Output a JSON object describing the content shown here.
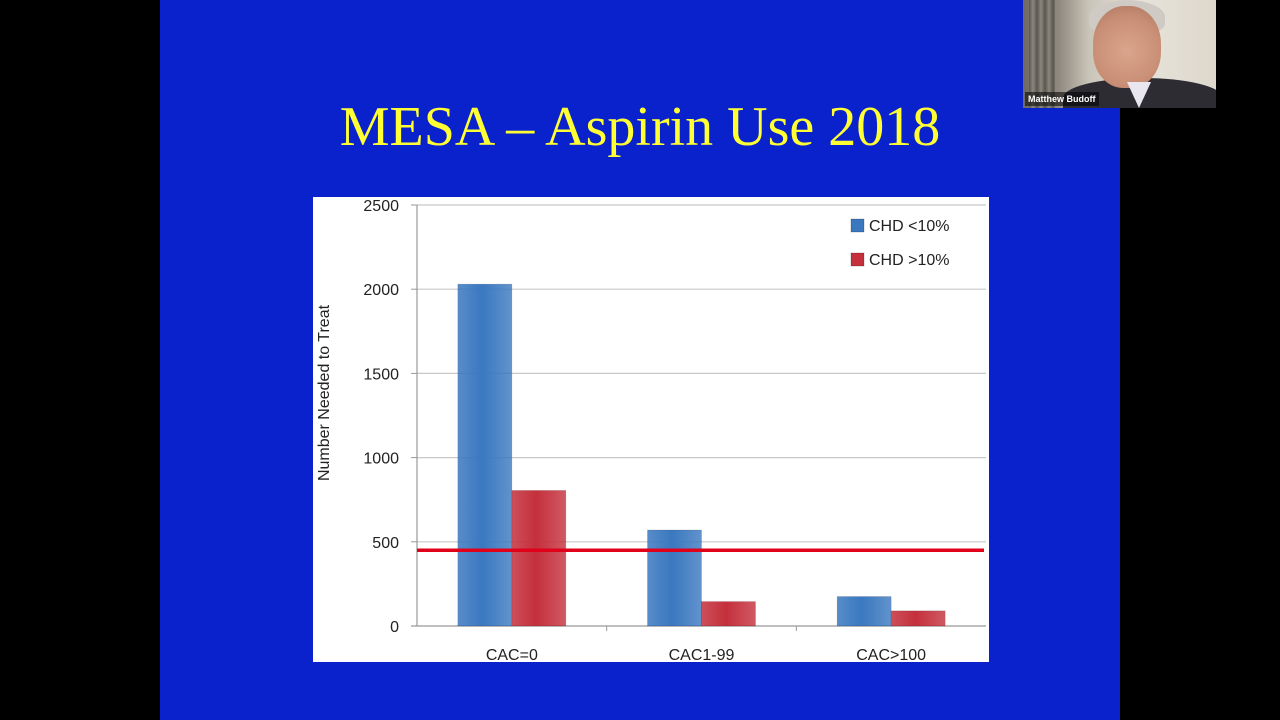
{
  "slide": {
    "title": "MESA – Aspirin Use 2018"
  },
  "video": {
    "speaker_name": "Matthew Budoff"
  },
  "chart_data": {
    "type": "bar",
    "title": "",
    "xlabel": "",
    "ylabel": "Number Needed to Treat",
    "categories": [
      "CAC=0",
      "CAC1-99",
      "CAC>100"
    ],
    "series": [
      {
        "name": "CHD <10%",
        "values": [
          2030,
          570,
          175
        ],
        "color": "#3a78c0"
      },
      {
        "name": "CHD >10%",
        "values": [
          805,
          145,
          90
        ],
        "color": "#c4303c"
      }
    ],
    "ylim": [
      0,
      2500
    ],
    "yticks": [
      0,
      500,
      1000,
      1500,
      2000,
      2500
    ],
    "grid": true,
    "legend": "top-right",
    "reference_line": {
      "value": 450,
      "color": "#e0001a"
    }
  }
}
